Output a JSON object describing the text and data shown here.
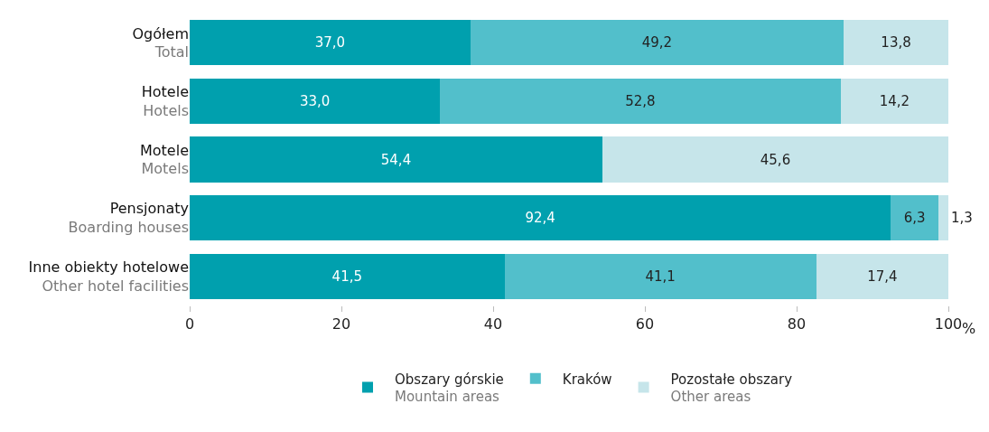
{
  "chart_data": {
    "type": "bar",
    "orientation": "horizontal",
    "stacked": true,
    "categories": [
      "Ogółem\nTotal",
      "Hotele\nHotels",
      "Motele\nMotels",
      "Pensjonaty\nBoarding houses",
      "Inne obiekty hotelowe\nOther hotel facilities"
    ],
    "series": [
      {
        "name": "Obszary górskie\nMountain areas",
        "color": "#00a0ae",
        "values": [
          37.0,
          33.0,
          54.4,
          92.4,
          41.5
        ],
        "value_labels": [
          "37,0",
          "33,0",
          "54,4",
          "92,4",
          "41,5"
        ]
      },
      {
        "name": "Kraków",
        "color": "#52bfcb",
        "values": [
          49.2,
          52.8,
          null,
          6.3,
          41.1
        ],
        "value_labels": [
          "49,2",
          "52,8",
          null,
          "6,3",
          "41,1"
        ]
      },
      {
        "name": "Pozostałe obszary\nOther areas",
        "color": "#c6e5ea",
        "values": [
          13.8,
          14.2,
          45.6,
          1.3,
          17.4
        ],
        "value_labels": [
          "13,8",
          "14,2",
          "45,6",
          "1,3",
          "17,4"
        ]
      }
    ],
    "xlim": [
      0,
      100
    ],
    "xticks": [
      0,
      20,
      40,
      60,
      80,
      100
    ],
    "xlabel": "%",
    "grid": false,
    "legend": "bottom"
  }
}
